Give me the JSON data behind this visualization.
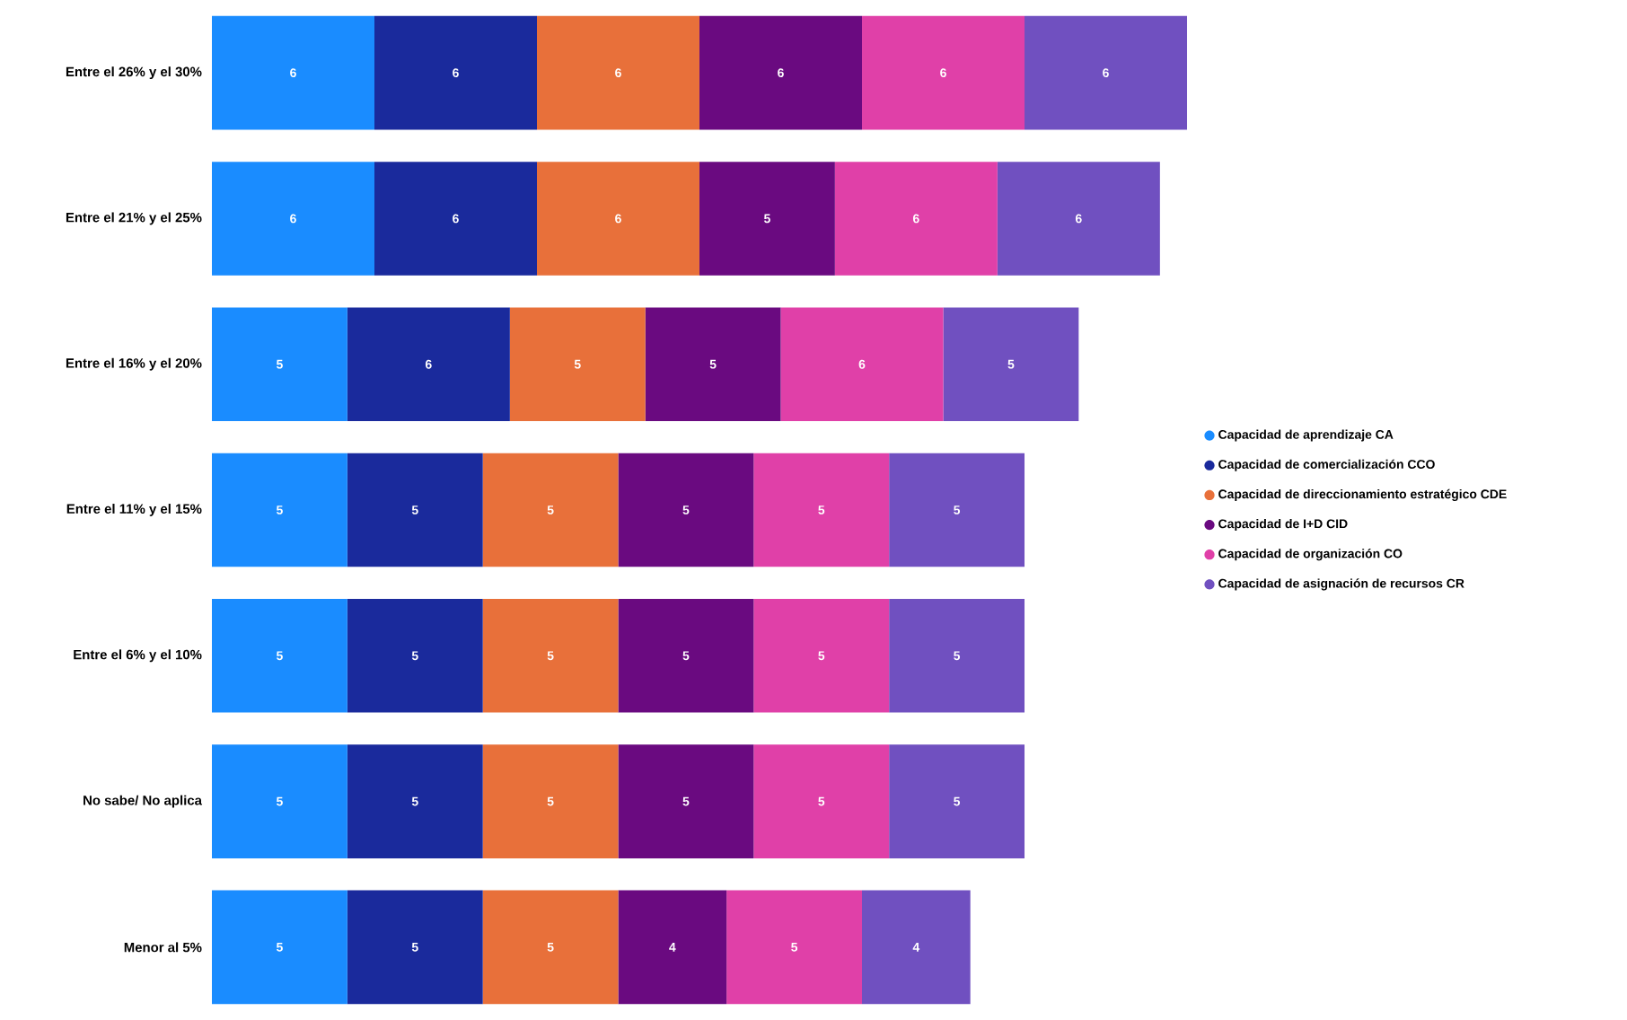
{
  "chart_data": {
    "type": "bar",
    "orientation": "horizontal",
    "stacked": true,
    "data_labels": true,
    "legend": "right",
    "categories": [
      "Entre el 26% y el 30%",
      "Entre el 21% y el 25%",
      "Entre el 16% y el 20%",
      "Entre el 11% y el 15%",
      "Entre el 6% y el 10%",
      "No sabe/ No aplica",
      "Menor al 5%"
    ],
    "series": [
      {
        "name": "Capacidad de aprendizaje CA",
        "color": "#1a8cff",
        "values": [
          6,
          6,
          5,
          5,
          5,
          5,
          5
        ]
      },
      {
        "name": "Capacidad de comercialización CCO",
        "color": "#1a2a9c",
        "values": [
          6,
          6,
          6,
          5,
          5,
          5,
          5
        ]
      },
      {
        "name": "Capacidad de direccionamiento estratégico CDE",
        "color": "#e8703a",
        "values": [
          6,
          6,
          5,
          5,
          5,
          5,
          5
        ]
      },
      {
        "name": "Capacidad de I+D CID",
        "color": "#6a0a80",
        "values": [
          6,
          5,
          5,
          5,
          5,
          5,
          4
        ]
      },
      {
        "name": "Capacidad de organización CO",
        "color": "#e040a8",
        "values": [
          6,
          6,
          6,
          5,
          5,
          5,
          5
        ]
      },
      {
        "name": "Capacidad de asignación de recursos CR",
        "color": "#7050c0",
        "values": [
          6,
          6,
          5,
          5,
          5,
          5,
          4
        ]
      }
    ]
  }
}
